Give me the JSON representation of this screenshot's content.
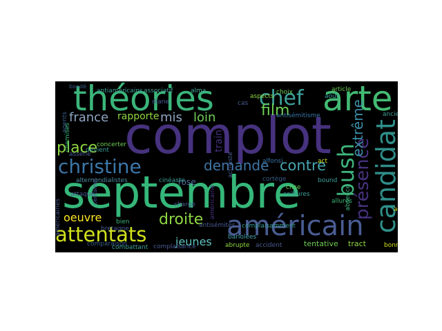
{
  "wordcloud": {
    "background": "#000000",
    "words": [
      {
        "text": "complot",
        "color": "#46327e"
      },
      {
        "text": "septembre",
        "color": "#35b779"
      },
      {
        "text": "théories",
        "color": "#3bb57a"
      },
      {
        "text": "américain",
        "color": "#4a5d93"
      },
      {
        "text": "arte",
        "color": "#43bb73"
      },
      {
        "text": "christine",
        "color": "#3c77a8"
      },
      {
        "text": "attentats",
        "color": "#d0e11c"
      },
      {
        "text": "candidat",
        "color": "#2f8f8a"
      },
      {
        "text": "bush",
        "color": "#3fb47d"
      },
      {
        "text": "chef",
        "color": "#3da19a"
      },
      {
        "text": "présence",
        "color": "#46327e"
      },
      {
        "text": "extrême",
        "color": "#3b8fa7"
      },
      {
        "text": "droite",
        "color": "#8fd744"
      },
      {
        "text": "contre",
        "color": "#47a5b0"
      },
      {
        "text": "demande",
        "color": "#3f76a6"
      },
      {
        "text": "film",
        "color": "#6fcf56"
      },
      {
        "text": "france",
        "color": "#8fa6c4"
      },
      {
        "text": "place",
        "color": "#8fd744"
      },
      {
        "text": "jeunes",
        "color": "#5fc5c0"
      },
      {
        "text": "oeuvre",
        "color": "#fde725"
      },
      {
        "text": "loin",
        "color": "#6fcf56"
      },
      {
        "text": "mis",
        "color": "#8fa6c4"
      },
      {
        "text": "rapporte",
        "color": "#8fd744"
      },
      {
        "text": "rose",
        "color": "#4e6aa0"
      },
      {
        "text": "train",
        "color": "#46327e"
      },
      {
        "text": "tentative",
        "color": "#6fcf56"
      },
      {
        "text": "tract",
        "color": "#8fd744"
      },
      {
        "text": "alternondialistes",
        "color": "#4d8fa5"
      },
      {
        "text": "cinéaste",
        "color": "#3da19a"
      },
      {
        "text": "centaines",
        "color": "#4a5d93"
      },
      {
        "text": "antiaméricains",
        "color": "#3da19a"
      },
      {
        "text": "associatif",
        "color": "#48a094"
      },
      {
        "text": "alma",
        "color": "#47b0a0"
      },
      {
        "text": "article",
        "color": "#6fcf56"
      },
      {
        "text": "antisémitisme",
        "color": "#3c77a8"
      },
      {
        "text": "antisémites",
        "color": "#4a5d93"
      },
      {
        "text": "alfonsi",
        "color": "#3c77a8"
      },
      {
        "text": "absence",
        "color": "#3fb47d"
      },
      {
        "text": "allures",
        "color": "#3bb57a"
      },
      {
        "text": "coiffures",
        "color": "#3da19a"
      },
      {
        "text": "bariolées",
        "color": "#47a5b0"
      },
      {
        "text": "abrupte",
        "color": "#8fd744"
      },
      {
        "text": "accident",
        "color": "#4a5d93"
      },
      {
        "text": "bonne",
        "color": "#d0e11c"
      },
      {
        "text": "ancien",
        "color": "#3da19a"
      },
      {
        "text": "attaque",
        "color": "#4a5d93"
      },
      {
        "text": "bretagne",
        "color": "#4a5d93"
      },
      {
        "text": "agents",
        "color": "#3b5f8a"
      },
      {
        "text": "activiste",
        "color": "#4a5d93"
      },
      {
        "text": "aspects",
        "color": "#8fd744"
      },
      {
        "text": "act",
        "color": "#d0e11c"
      },
      {
        "text": "bound",
        "color": "#3da19a"
      },
      {
        "text": "crise",
        "color": "#6fcf56"
      },
      {
        "text": "charge",
        "color": "#4a5d93"
      },
      {
        "text": "bien",
        "color": "#3bb57a"
      },
      {
        "text": "américaine",
        "color": "#46327e"
      },
      {
        "text": "combattant",
        "color": "#3da19a"
      },
      {
        "text": "comparaison",
        "color": "#3b5f8a"
      },
      {
        "text": "cas",
        "color": "#4a5d93"
      },
      {
        "text": "choix",
        "color": "#6fcf56"
      },
      {
        "text": "août",
        "color": "#3da19a"
      },
      {
        "text": "ans",
        "color": "#d0e11c"
      },
      {
        "text": "concerter",
        "color": "#6fcf56"
      },
      {
        "text": "cortège",
        "color": "#3b5f8a"
      },
      {
        "text": "diane",
        "color": "#4a5d93"
      },
      {
        "text": "assène",
        "color": "#4a5d93"
      },
      {
        "text": "devient",
        "color": "#3da19a"
      },
      {
        "text": "complaisance",
        "color": "#4a5d93"
      },
      {
        "text": "américaines",
        "color": "#4a5d93"
      },
      {
        "text": "complaisamment",
        "color": "#3da19a"
      },
      {
        "text": "bondé",
        "color": "#3b5f8a"
      },
      {
        "text": "chemises",
        "color": "#3bb57a"
      }
    ]
  }
}
